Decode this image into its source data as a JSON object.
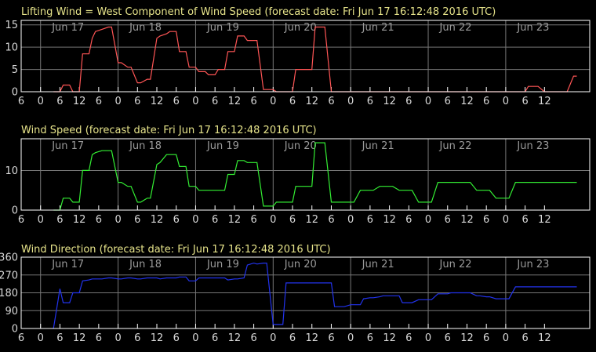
{
  "colors": {
    "background": "#000000",
    "title": "#e6e38a",
    "axis": "#ffffff",
    "grid": "#777777",
    "tick_text": "#d8d8d8",
    "day_text": "#9a9a9a"
  },
  "chart_data": [
    {
      "type": "line",
      "title": "Lifting Wind = West Component of Wind Speed (forecast date: Fri Jun 17 16:12:48 2016 UTC)",
      "color": "#ff5555",
      "hour_ticks": [
        "6",
        "0",
        "6",
        "12",
        "6",
        "0",
        "6",
        "12",
        "6",
        "0",
        "6",
        "12",
        "6",
        "0",
        "6",
        "12",
        "6",
        "0",
        "6",
        "12",
        "6",
        "0",
        "6",
        "12",
        "6",
        "0",
        "6",
        "12"
      ],
      "days": [
        "Jun 17",
        "Jun 18",
        "Jun 19",
        "Jun 20",
        "Jun 21",
        "Jun 22",
        "Jun 23"
      ],
      "ylim": [
        0,
        16
      ],
      "yticks": [
        0,
        5,
        10,
        15
      ],
      "x_hours_from_jun17_0000_utc": [
        4,
        6,
        7,
        9,
        10,
        12,
        13,
        15,
        16,
        17,
        19,
        21,
        22,
        24,
        25,
        27,
        28,
        30,
        31,
        33,
        34,
        36,
        37,
        39,
        40,
        42,
        43,
        45,
        46,
        48,
        49,
        51,
        52,
        54,
        55,
        57,
        58,
        60,
        61,
        63,
        64,
        66,
        67,
        69,
        70,
        72,
        73,
        75,
        76,
        78,
        79,
        81,
        82,
        84,
        85,
        87,
        88,
        90,
        91,
        93,
        94,
        96,
        97,
        99,
        100,
        102,
        103,
        105,
        106,
        108,
        109,
        111,
        112,
        114,
        115,
        117,
        118,
        120,
        121,
        123,
        124,
        126,
        127,
        129,
        130,
        132,
        133,
        135,
        136,
        138,
        139,
        141,
        142,
        144,
        145,
        147,
        148,
        150,
        151,
        153,
        154,
        156,
        157,
        159,
        160,
        162,
        163,
        165,
        166
      ],
      "y": [
        0,
        0,
        1.5,
        1.5,
        0,
        0,
        8.5,
        8.5,
        12,
        13.5,
        14,
        14.5,
        14.5,
        6.5,
        6.5,
        5.5,
        5.5,
        2,
        2,
        2.8,
        2.8,
        12,
        12.5,
        13,
        13.5,
        13.5,
        9,
        9,
        5.5,
        5.5,
        4.5,
        4.5,
        3.8,
        3.8,
        5,
        5,
        9,
        9,
        12.5,
        12.5,
        11.5,
        11.5,
        11.5,
        0.5,
        0.5,
        0.5,
        0,
        0,
        0,
        0,
        5,
        5,
        5,
        5,
        14.5,
        14.5,
        14.5,
        0,
        0,
        0,
        0,
        0,
        0,
        0,
        0,
        0,
        0,
        0,
        0,
        0,
        0,
        0,
        0,
        0,
        0,
        0,
        0,
        0,
        0,
        0,
        0,
        0,
        0,
        0,
        0,
        0,
        0,
        0,
        0,
        0,
        0,
        0,
        0,
        0,
        0,
        0,
        0,
        0,
        1.2,
        1.2,
        1.2,
        0,
        0,
        0,
        0,
        0,
        0,
        3.5,
        3.5,
        3.5,
        4.5
      ]
    },
    {
      "type": "line",
      "title": "Wind Speed (forecast date: Fri Jun 17 16:12:48 2016 UTC)",
      "color": "#33ee33",
      "hour_ticks": [
        "6",
        "0",
        "6",
        "12",
        "6",
        "0",
        "6",
        "12",
        "6",
        "0",
        "6",
        "12",
        "6",
        "0",
        "6",
        "12",
        "6",
        "0",
        "6",
        "12",
        "6",
        "0",
        "6",
        "12",
        "6",
        "0",
        "6",
        "12"
      ],
      "days": [
        "Jun 17",
        "Jun 18",
        "Jun 19",
        "Jun 20",
        "Jun 21",
        "Jun 22",
        "Jun 23"
      ],
      "ylim": [
        0,
        18
      ],
      "yticks": [
        0,
        10
      ],
      "x_hours_from_jun17_0000_utc": [
        4,
        6,
        7,
        9,
        10,
        12,
        13,
        15,
        16,
        17,
        19,
        21,
        22,
        24,
        25,
        27,
        28,
        30,
        31,
        33,
        34,
        36,
        37,
        39,
        40,
        42,
        43,
        45,
        46,
        48,
        49,
        51,
        52,
        54,
        55,
        57,
        58,
        60,
        61,
        63,
        64,
        66,
        67,
        69,
        70,
        72,
        73,
        75,
        76,
        78,
        79,
        81,
        82,
        84,
        85,
        87,
        88,
        90,
        91,
        93,
        94,
        96,
        97,
        99,
        100,
        102,
        103,
        105,
        106,
        108,
        109,
        111,
        112,
        114,
        115,
        117,
        118,
        120,
        121,
        123,
        124,
        126,
        127,
        129,
        130,
        132,
        133,
        135,
        136,
        138,
        139,
        141,
        142,
        144,
        145,
        147,
        148,
        150,
        151,
        153,
        154,
        156,
        157,
        159,
        160,
        162,
        163,
        165,
        166
      ],
      "y": [
        0,
        0,
        3,
        3,
        2,
        2,
        10,
        10,
        14,
        14.5,
        15,
        15,
        15,
        7,
        7,
        6,
        6,
        2,
        2,
        3,
        3,
        11.5,
        12,
        14,
        14,
        14,
        11,
        11,
        6,
        6,
        5,
        5,
        5,
        5,
        5,
        5,
        9,
        9,
        12.5,
        12.5,
        12,
        12,
        12,
        1,
        1,
        1,
        2,
        2,
        2,
        2,
        6,
        6,
        6,
        6,
        17,
        17,
        17,
        2,
        2,
        2,
        2,
        2,
        2,
        5,
        5,
        5,
        5,
        6,
        6,
        6,
        6,
        5,
        5,
        5,
        5,
        2,
        2,
        2,
        2,
        7,
        7,
        7,
        7,
        7,
        7,
        7,
        7,
        5,
        5,
        5,
        5,
        3,
        3,
        3,
        3,
        7,
        7,
        7,
        7,
        7,
        7,
        7,
        7,
        7,
        7,
        7,
        7,
        7,
        7,
        7,
        7
      ]
    },
    {
      "type": "line",
      "title": "Wind Direction (forecast date: Fri Jun 17 16:12:48 2016 UTC)",
      "color": "#2233ee",
      "hour_ticks": [
        "6",
        "0",
        "6",
        "12",
        "6",
        "0",
        "6",
        "12",
        "6",
        "0",
        "6",
        "12",
        "6",
        "0",
        "6",
        "12",
        "6",
        "0",
        "6",
        "12",
        "6",
        "0",
        "6",
        "12",
        "6",
        "0",
        "6",
        "12"
      ],
      "days": [
        "Jun 17",
        "Jun 18",
        "Jun 19",
        "Jun 20",
        "Jun 21",
        "Jun 22",
        "Jun 23"
      ],
      "ylim": [
        0,
        360
      ],
      "yticks": [
        0,
        90,
        180,
        270,
        360
      ],
      "x_hours_from_jun17_0000_utc": [
        4,
        6,
        7,
        9,
        10,
        12,
        13,
        15,
        16,
        17,
        19,
        21,
        22,
        24,
        25,
        27,
        28,
        30,
        31,
        33,
        34,
        36,
        37,
        39,
        40,
        42,
        43,
        45,
        46,
        48,
        49,
        51,
        52,
        54,
        55,
        57,
        58,
        60,
        61,
        63,
        64,
        66,
        67,
        69,
        70,
        72,
        73,
        75,
        76,
        78,
        79,
        81,
        82,
        84,
        85,
        87,
        88,
        90,
        91,
        93,
        94,
        96,
        97,
        99,
        100,
        102,
        103,
        105,
        106,
        108,
        109,
        111,
        112,
        114,
        115,
        117,
        118,
        120,
        121,
        123,
        124,
        126,
        127,
        129,
        130,
        132,
        133,
        135,
        136,
        138,
        139,
        141,
        142,
        144,
        145,
        147,
        148,
        150,
        151,
        153,
        154,
        156,
        157,
        159,
        160,
        162,
        163,
        165,
        166
      ],
      "y": [
        0,
        200,
        130,
        130,
        180,
        180,
        240,
        245,
        250,
        250,
        250,
        255,
        255,
        250,
        250,
        255,
        255,
        250,
        250,
        255,
        255,
        255,
        250,
        255,
        255,
        255,
        260,
        260,
        240,
        240,
        255,
        255,
        255,
        255,
        255,
        255,
        245,
        250,
        250,
        255,
        320,
        330,
        325,
        330,
        330,
        20,
        20,
        20,
        230,
        230,
        230,
        230,
        230,
        230,
        230,
        230,
        230,
        230,
        110,
        110,
        110,
        120,
        120,
        120,
        150,
        155,
        155,
        160,
        165,
        165,
        165,
        165,
        130,
        130,
        130,
        145,
        145,
        145,
        145,
        175,
        175,
        175,
        180,
        180,
        180,
        180,
        180,
        165,
        165,
        160,
        160,
        150,
        150,
        150,
        150,
        210,
        210,
        210,
        210,
        210,
        210,
        210,
        210,
        210,
        210,
        210,
        210,
        210,
        210
      ]
    }
  ]
}
